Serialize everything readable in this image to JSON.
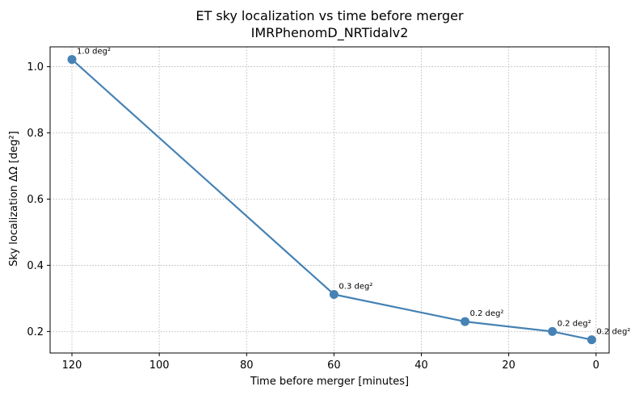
{
  "chart_data": {
    "type": "line",
    "title": "ET sky localization vs time before merger",
    "subtitle": "IMRPhenomD_NRTidalv2",
    "xlabel": "Time before merger [minutes]",
    "ylabel": "Sky localization ΔΩ [deg²]",
    "x_inverted": true,
    "xlim": [
      125,
      -3
    ],
    "ylim": [
      0.135,
      1.06
    ],
    "xticks": [
      120,
      100,
      80,
      60,
      40,
      20,
      0
    ],
    "xtick_labels": [
      "120",
      "100",
      "80",
      "60",
      "40",
      "20",
      "0"
    ],
    "yticks": [
      0.2,
      0.4,
      0.6,
      0.8,
      1.0
    ],
    "ytick_labels": [
      "0.2",
      "0.4",
      "0.6",
      "0.8",
      "1.0"
    ],
    "grid": true,
    "line_color": "#4682b4",
    "series": [
      {
        "x": [
          120,
          60,
          30,
          10,
          1
        ],
        "values": [
          1.022,
          0.312,
          0.23,
          0.2,
          0.175
        ],
        "annotations": [
          "1.0 deg²",
          "0.3 deg²",
          "0.2 deg²",
          "0.2 deg²",
          "0.2 deg²"
        ]
      }
    ]
  }
}
